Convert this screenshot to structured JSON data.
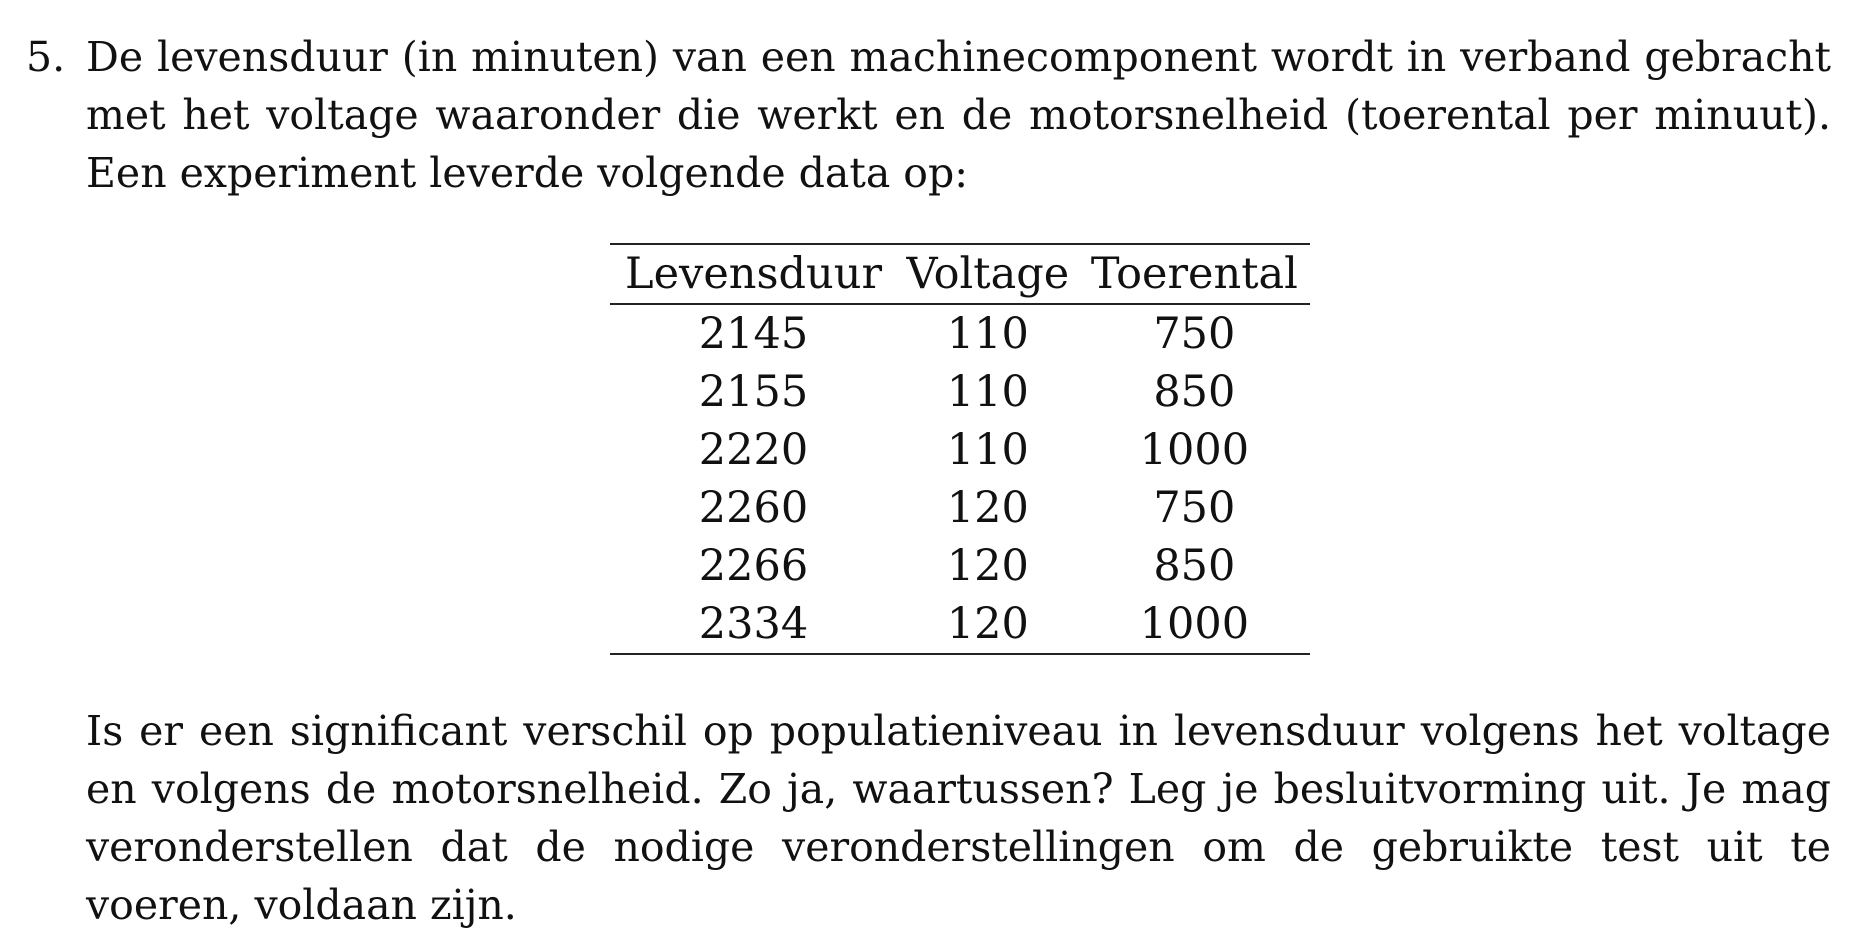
{
  "exercise": {
    "number": "5.",
    "intro": "De levensduur (in minuten) van een machinecomponent wordt in verband gebracht met het voltage waaronder die werkt en de motorsnelheid (toerental per minuut). Een experiment leverde volgende data op:",
    "question": "Is er een significant verschil op populatieniveau in levensduur volgens het voltage en volgens de motorsnelheid. Zo ja, waartussen? Leg je besluitvorming uit. Je mag veronderstellen dat de nodige veronderstellingen om de gebruikte test uit te voeren, voldaan zijn."
  },
  "table": {
    "headers": [
      "Levensduur",
      "Voltage",
      "Toerental"
    ],
    "rows": [
      [
        "2145",
        "110",
        "750"
      ],
      [
        "2155",
        "110",
        "850"
      ],
      [
        "2220",
        "110",
        "1000"
      ],
      [
        "2260",
        "120",
        "750"
      ],
      [
        "2266",
        "120",
        "850"
      ],
      [
        "2334",
        "120",
        "1000"
      ]
    ]
  }
}
